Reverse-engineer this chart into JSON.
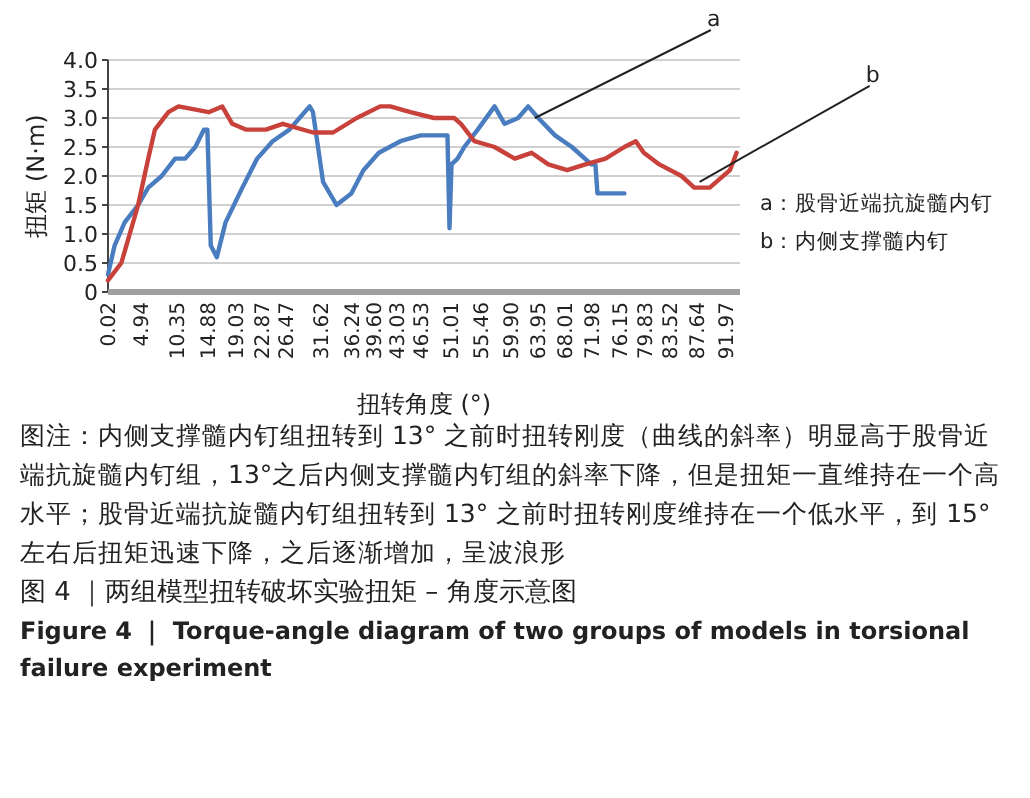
{
  "chart_data": {
    "type": "line",
    "title": "图 4 ｜两组模型扭转破坏实验扭矩 – 角度示意图",
    "subtitle": "Figure 4 ｜ Torque-angle diagram of two groups of models in torsional failure experiment",
    "xlabel": "扭转角度 (°)",
    "ylabel": "扭矩 (N·m)",
    "series": [
      {
        "color": "#4a7dc0",
        "x": [
          0.02,
          1,
          2.5,
          4.5,
          6,
          8,
          10,
          11.5,
          13,
          14.3,
          14.8,
          15.3,
          16.2,
          17.5,
          20,
          22.2,
          24.5,
          27,
          28.5,
          30,
          30.5,
          32,
          34,
          36.2,
          38,
          40.3,
          43.5,
          46.5,
          50.5,
          50.8,
          51.1,
          52,
          53,
          55,
          57.5,
          59,
          61,
          62.5,
          64,
          66.5,
          69,
          71.9,
          72.5,
          72.8,
          74.5,
          76.8
        ],
        "values": [
          0.3,
          0.8,
          1.2,
          1.5,
          1.8,
          2.0,
          2.3,
          2.3,
          2.5,
          2.8,
          2.8,
          0.8,
          0.6,
          1.2,
          1.8,
          2.3,
          2.6,
          2.8,
          3.0,
          3.2,
          3.1,
          1.9,
          1.5,
          1.7,
          2.1,
          2.4,
          2.6,
          2.7,
          2.7,
          1.1,
          2.2,
          2.3,
          2.5,
          2.8,
          3.2,
          2.9,
          3.0,
          3.2,
          3.0,
          2.7,
          2.5,
          2.2,
          2.2,
          1.7,
          1.7,
          1.7
        ]
      },
      {
        "color": "#c8413a",
        "x": [
          0.02,
          2,
          4.5,
          6,
          7,
          9,
          10.5,
          15,
          17,
          18.5,
          20.5,
          23.5,
          26,
          30.5,
          33.5,
          37,
          40.5,
          42,
          45,
          48.5,
          51.5,
          52.5,
          54.5,
          57.5,
          60.5,
          63,
          65.5,
          68.3,
          71,
          74,
          76.8,
          78.5,
          79.7,
          82,
          85.3,
          87.2,
          89.5,
          92.5,
          93.5
        ],
        "values": [
          0.2,
          0.5,
          1.5,
          2.3,
          2.8,
          3.1,
          3.2,
          3.1,
          3.2,
          2.9,
          2.8,
          2.8,
          2.9,
          2.75,
          2.75,
          3.0,
          3.2,
          3.2,
          3.1,
          3.0,
          3.0,
          2.9,
          2.6,
          2.5,
          2.3,
          2.4,
          2.2,
          2.1,
          2.2,
          2.3,
          2.5,
          2.6,
          2.4,
          2.2,
          2.0,
          1.8,
          1.8,
          2.1,
          2.4
        ]
      }
    ],
    "xlim": [
      0.02,
      94
    ],
    "xticks": [
      0.02,
      4.94,
      10.35,
      14.88,
      19.03,
      22.87,
      26.47,
      31.62,
      36.24,
      {
        "value": 39.6,
        "label": "39.60"
      },
      43.03,
      46.53,
      51.01,
      55.46,
      {
        "value": 59.9,
        "label": "59.90"
      },
      63.95,
      68.01,
      71.98,
      76.15,
      79.83,
      83.52,
      87.64,
      91.97
    ],
    "ylim": [
      0,
      4
    ],
    "yticks": [
      0,
      0.5,
      {
        "value": 1,
        "label": "1.0"
      },
      1.5,
      {
        "value": 2,
        "label": "2.0"
      },
      2.5,
      {
        "value": 3,
        "label": "3.0"
      },
      3.5,
      {
        "value": 4,
        "label": "4.0"
      }
    ],
    "grid": "y",
    "line_style": "solid",
    "marker": "none",
    "annotations": [
      {
        "text": "a",
        "x": 63.5,
        "y": 3.0
      },
      {
        "text": "b",
        "x": 88,
        "y": 1.9
      },
      "a：股骨近端抗旋髓内钉",
      "b：内侧支撑髓内钉",
      "图注：内侧支撑髓内钉组扭转到 13° 之前时扭转刚度（曲线的斜率）明显高于股骨近端抗旋髓内钉组，13°之后内侧支撑髓内钉组的斜率下降，但是扭矩一直维持在一个高水平；股骨近端抗旋髓内钉组扭转到 13° 之前时扭转刚度维持在一个低水平，到 15° 左右后扭矩迅速下降，之后逐渐增加，呈波浪形"
    ]
  }
}
